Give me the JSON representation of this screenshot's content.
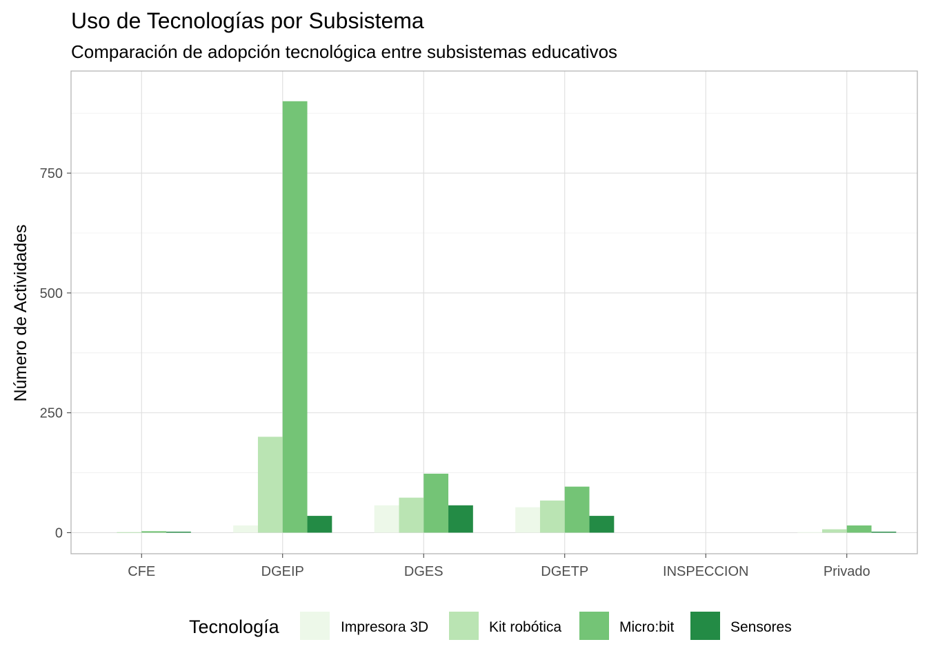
{
  "chart_data": {
    "type": "bar",
    "title": "Uso de Tecnologías por Subsistema",
    "subtitle": "Comparación de adopción tecnológica entre subsistemas educativos",
    "xlabel": "",
    "ylabel": "Número de Actividades",
    "categories": [
      "CFE",
      "DGEIP",
      "DGES",
      "DGETP",
      "INSPECCION",
      "Privado"
    ],
    "series": [
      {
        "name": "Impresora 3D",
        "color": "#edf8e9",
        "values": [
          0,
          15,
          57,
          53,
          0,
          1
        ]
      },
      {
        "name": "Kit robótica",
        "color": "#bae4b3",
        "values": [
          1,
          200,
          73,
          67,
          0,
          7
        ]
      },
      {
        "name": "Micro:bit",
        "color": "#74c476",
        "values": [
          3,
          900,
          123,
          96,
          0,
          15
        ]
      },
      {
        "name": "Sensores",
        "color": "#238b45",
        "values": [
          2,
          35,
          57,
          35,
          0,
          2
        ]
      }
    ],
    "ylim": [
      -44,
      963
    ],
    "yticks": [
      0,
      250,
      500,
      750
    ],
    "grid": true,
    "legend": {
      "title": "Tecnología",
      "position": "bottom"
    }
  }
}
